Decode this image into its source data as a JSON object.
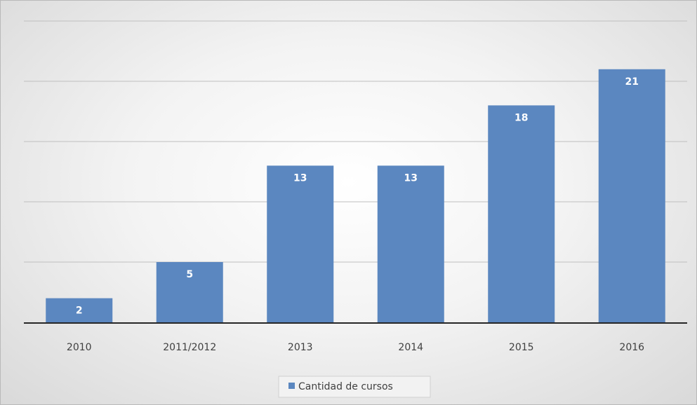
{
  "chart_data": {
    "type": "bar",
    "title": "",
    "xlabel": "",
    "ylabel": "",
    "categories": [
      "2010",
      "2011/2012",
      "2013",
      "2014",
      "2015",
      "2016"
    ],
    "series": [
      {
        "name": "Cantidad de cursos",
        "values": [
          2,
          5,
          13,
          13,
          18,
          21
        ]
      }
    ],
    "ylim": [
      0,
      25
    ],
    "grid": true,
    "legend_position": "bottom",
    "data_labels": "inside-end",
    "colors": {
      "bar": "#5b87c0",
      "gridline": "#bfbfbf",
      "axis": "#262626",
      "label": "#ffffff",
      "tick_text": "#404040"
    }
  }
}
